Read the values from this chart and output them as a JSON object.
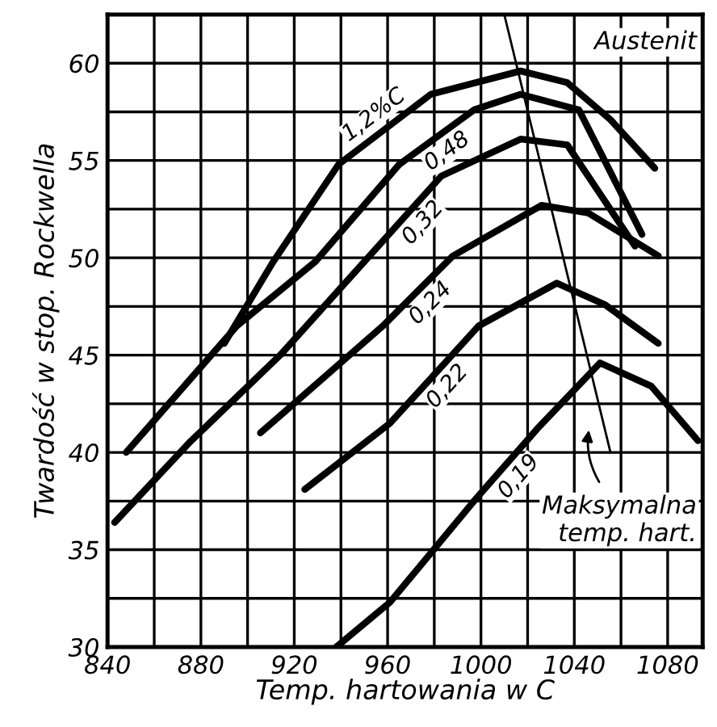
{
  "chart_data": {
    "type": "line",
    "xlabel": "Temp. hartowania w C",
    "ylabel": "Twardość w stop. Rockwella",
    "xlim": [
      840,
      1095
    ],
    "ylim": [
      30,
      62.5
    ],
    "xticks": [
      840,
      {
        "value": 860,
        "label": null
      },
      880,
      {
        "value": 900,
        "label": null
      },
      920,
      {
        "value": 940,
        "label": null
      },
      960,
      {
        "value": 980,
        "label": null
      },
      1000,
      {
        "value": 1020,
        "label": null
      },
      1040,
      {
        "value": 1060,
        "label": null
      },
      1080
    ],
    "yticks": [
      30,
      {
        "value": 32.5,
        "label": null
      },
      35,
      {
        "value": 37.5,
        "label": null
      },
      40,
      {
        "value": 42.5,
        "label": null
      },
      45,
      {
        "value": 47.5,
        "label": null
      },
      50,
      {
        "value": 52.5,
        "label": null
      },
      55,
      {
        "value": 57.5,
        "label": null
      },
      60
    ],
    "grid": true,
    "marker": "none",
    "line_style": "solid",
    "series": [
      {
        "name": "1,2%C",
        "color": "#000000",
        "x": [
          890,
          911,
          939,
          978.5,
          1017,
          1037,
          1055.5,
          1074.5
        ],
        "values": [
          45.6,
          49.8,
          54.8,
          58.4,
          59.6,
          59.0,
          57.1,
          54.6
        ]
      },
      {
        "name": "0,48",
        "color": "#000000",
        "x": [
          848,
          895.4,
          929,
          965,
          997,
          1017,
          1042,
          1069
        ],
        "values": [
          40.0,
          46.5,
          49.8,
          54.8,
          57.6,
          58.4,
          57.6,
          51.2
        ]
      },
      {
        "name": "0,32",
        "color": "#000000",
        "x": [
          843,
          875,
          914,
          956,
          983,
          1017,
          1037,
          1066
        ],
        "values": [
          36.4,
          40.5,
          45.0,
          50.6,
          54.2,
          56.1,
          55.8,
          50.6
        ]
      },
      {
        "name": "0,24",
        "color": "#000000",
        "x": [
          905.5,
          958,
          988,
          1026,
          1046,
          1076
        ],
        "values": [
          41.0,
          46.5,
          50.1,
          52.7,
          52.3,
          50.1
        ]
      },
      {
        "name": "0,22",
        "color": "#000000",
        "x": [
          924.5,
          961,
          999,
          1032.5,
          1053,
          1076
        ],
        "values": [
          38.1,
          41.5,
          46.5,
          48.7,
          47.6,
          45.6
        ]
      },
      {
        "name": "0,19",
        "color": "#000000",
        "x": [
          938,
          961,
          997,
          1024,
          1051,
          1073,
          1093
        ],
        "values": [
          30.0,
          32.3,
          37.5,
          41.2,
          44.6,
          43.4,
          40.6
        ]
      },
      {
        "color": "#000000",
        "x": [
          1010,
          1055.5
        ],
        "values": [
          62.5,
          40.0
        ]
      }
    ],
    "annotations": [
      "Austenit",
      "Maksymalna\ntemp. hart."
    ]
  }
}
